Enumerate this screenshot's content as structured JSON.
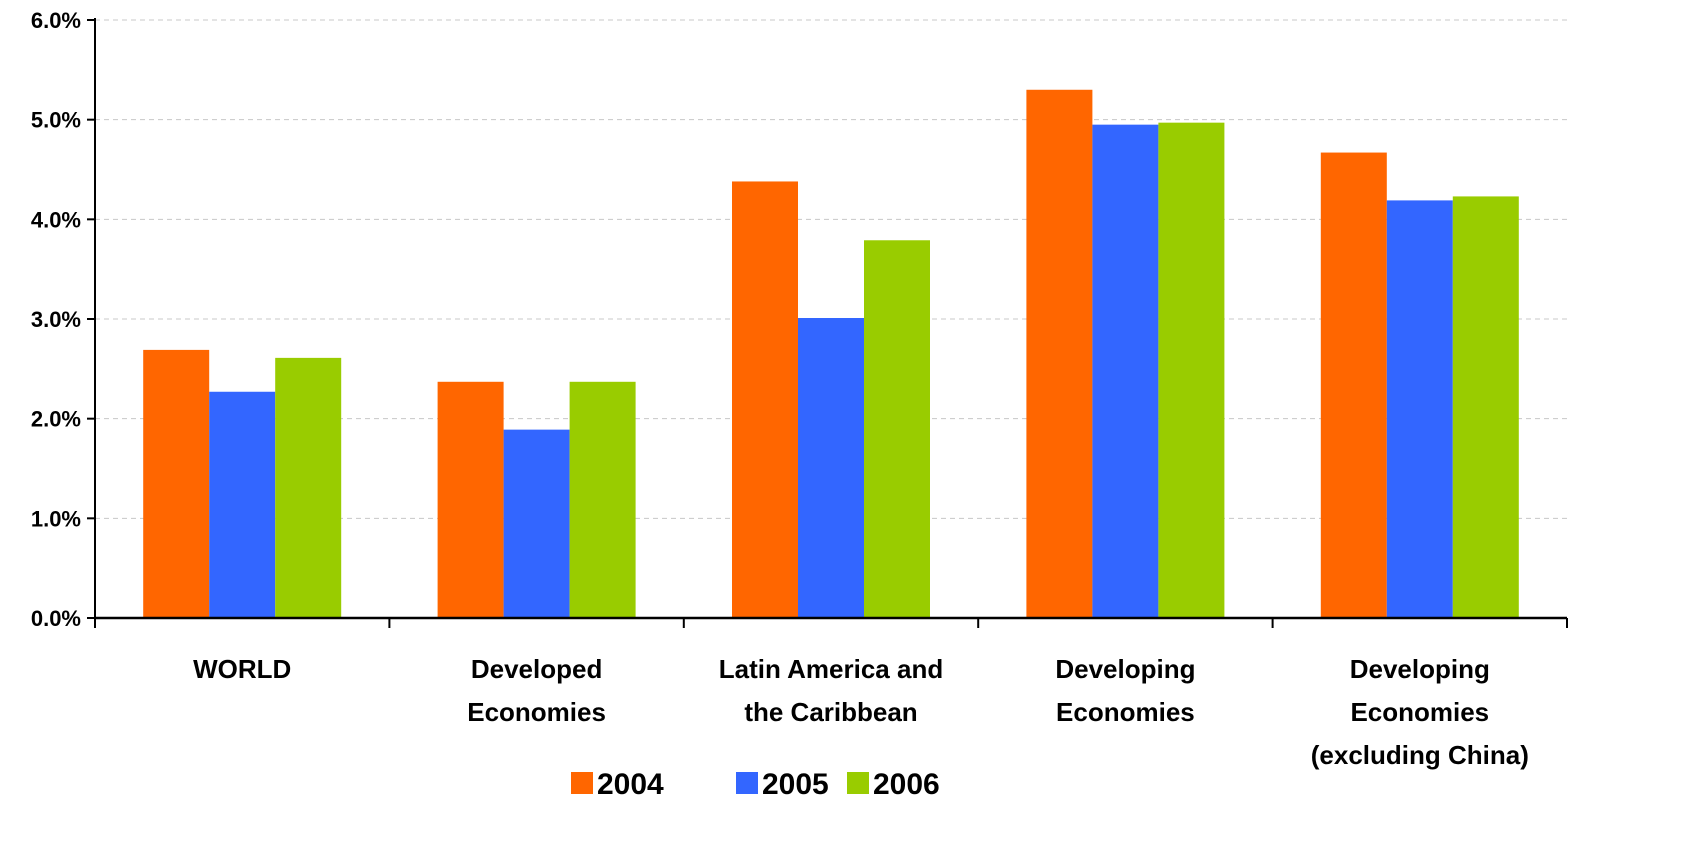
{
  "chart_data": {
    "type": "bar",
    "title": "",
    "xlabel": "",
    "ylabel": "",
    "ylim": [
      0,
      6
    ],
    "y_ticks": [
      "0.0%",
      "1.0%",
      "2.0%",
      "3.0%",
      "4.0%",
      "5.0%",
      "6.0%"
    ],
    "grid": true,
    "legend_position": "bottom",
    "categories": [
      [
        "WORLD"
      ],
      [
        "Developed",
        "Economies"
      ],
      [
        "Latin America and",
        "the Caribbean"
      ],
      [
        "Developing",
        "Economies"
      ],
      [
        "Developing",
        "Economies",
        "(excluding China)"
      ]
    ],
    "series": [
      {
        "name": "2004",
        "color": "#FF6600",
        "values": [
          2.69,
          2.37,
          4.38,
          5.3,
          4.67
        ]
      },
      {
        "name": "2005",
        "color": "#3366FF",
        "values": [
          2.27,
          1.89,
          3.01,
          4.95,
          4.19
        ]
      },
      {
        "name": "2006",
        "color": "#99CC00",
        "values": [
          2.61,
          2.37,
          3.79,
          4.97,
          4.23
        ]
      }
    ]
  }
}
